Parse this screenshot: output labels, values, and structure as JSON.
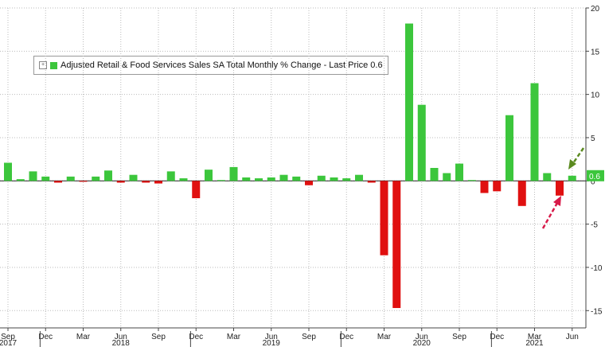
{
  "legend": {
    "text": "Adjusted Retail & Food Services Sales SA Total Monthly % Change - Last Price 0.6"
  },
  "last_price_label": "0.6",
  "chart_data": {
    "type": "bar",
    "title": "",
    "xlabel": "",
    "ylabel": "",
    "ylim": [
      -17,
      20
    ],
    "y_ticks": [
      20,
      15,
      10,
      5,
      0,
      -5,
      -10,
      -15
    ],
    "y_axis_position": "right",
    "grid": true,
    "legend_position": "top-left",
    "positive_color": "#3cc63c",
    "negative_color": "#e01010",
    "categories": [
      "2017-09",
      "2017-10",
      "2017-11",
      "2017-12",
      "2018-01",
      "2018-02",
      "2018-03",
      "2018-04",
      "2018-05",
      "2018-06",
      "2018-07",
      "2018-08",
      "2018-09",
      "2018-10",
      "2018-11",
      "2018-12",
      "2019-01",
      "2019-02",
      "2019-03",
      "2019-04",
      "2019-05",
      "2019-06",
      "2019-07",
      "2019-08",
      "2019-09",
      "2019-10",
      "2019-11",
      "2019-12",
      "2020-01",
      "2020-02",
      "2020-03",
      "2020-04",
      "2020-05",
      "2020-06",
      "2020-07",
      "2020-08",
      "2020-09",
      "2020-10",
      "2020-11",
      "2020-12",
      "2021-01",
      "2021-02",
      "2021-03",
      "2021-04",
      "2021-05",
      "2021-06"
    ],
    "values": [
      2.1,
      0.2,
      1.1,
      0.5,
      -0.2,
      0.5,
      -0.1,
      0.5,
      1.2,
      -0.2,
      0.7,
      -0.2,
      -0.3,
      1.1,
      0.3,
      -2.0,
      1.3,
      0.1,
      1.6,
      0.4,
      0.3,
      0.4,
      0.7,
      0.5,
      -0.5,
      0.6,
      0.4,
      0.3,
      0.7,
      -0.2,
      -8.6,
      -14.7,
      18.2,
      8.8,
      1.5,
      0.9,
      2.0,
      0.1,
      -1.4,
      -1.2,
      7.6,
      -2.9,
      11.3,
      0.9,
      -1.7,
      0.6
    ],
    "x_tick_labels": [
      "Sep",
      "Dec",
      "Mar",
      "Jun",
      "Sep",
      "Dec",
      "Mar",
      "Jun",
      "Sep",
      "Dec",
      "Mar",
      "Jun",
      "Sep",
      "Dec",
      "Mar",
      "Jun"
    ],
    "x_tick_months": [
      "2017-09",
      "2017-12",
      "2018-03",
      "2018-06",
      "2018-09",
      "2018-12",
      "2019-03",
      "2019-06",
      "2019-09",
      "2019-12",
      "2020-03",
      "2020-06",
      "2020-09",
      "2020-12",
      "2021-03",
      "2021-06"
    ],
    "year_labels": [
      {
        "label": "2017",
        "month": "2017-09"
      },
      {
        "label": "2018",
        "month": "2018-06"
      },
      {
        "label": "2019",
        "month": "2019-06"
      },
      {
        "label": "2020",
        "month": "2020-06"
      },
      {
        "label": "2021",
        "month": "2021-03"
      }
    ],
    "arrow_colors": {
      "green": "#5a8a1e",
      "red": "#d81b4a"
    }
  }
}
